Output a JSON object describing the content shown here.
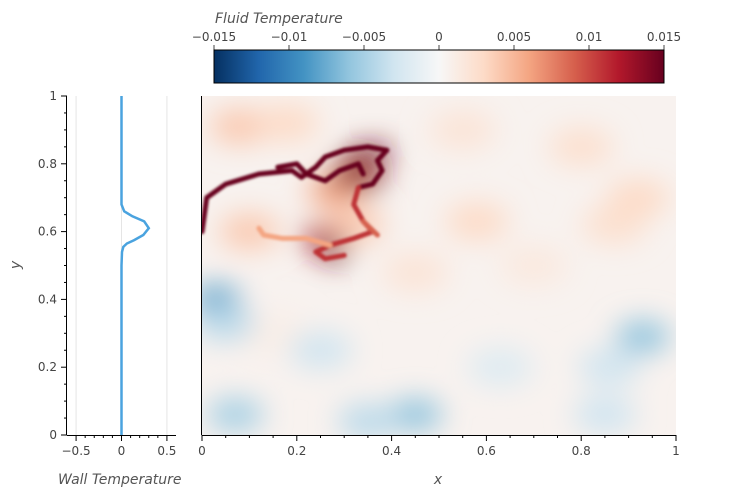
{
  "colorbar": {
    "title": "Fluid Temperature",
    "ticks": [
      -0.015,
      -0.01,
      -0.005,
      0,
      0.005,
      0.01,
      0.015
    ],
    "tick_labels": [
      "−0.015",
      "−0.01",
      "−0.005",
      "0",
      "0.005",
      "0.01",
      "0.015"
    ],
    "range": [
      -0.015,
      0.015
    ],
    "colormap": "RdBu_r",
    "stops": [
      "#053061",
      "#2166ac",
      "#4393c3",
      "#92c5de",
      "#d1e5f0",
      "#f7f7f7",
      "#fddbc7",
      "#f4a582",
      "#d6604d",
      "#b2182b",
      "#67001f"
    ]
  },
  "chart_data": [
    {
      "type": "line",
      "xlabel": "Wall Temperature",
      "ylabel": "y",
      "xlim": [
        -0.6,
        0.6
      ],
      "ylim": [
        0,
        1
      ],
      "xticks": [
        -0.5,
        0,
        0.5
      ],
      "xtick_labels": [
        "−0.5",
        "0",
        "0.5"
      ],
      "yticks": [
        0,
        0.2,
        0.4,
        0.6,
        0.8,
        1
      ],
      "ytick_labels": [
        "0",
        "0.2",
        "0.4",
        "0.6",
        "0.8",
        "1"
      ],
      "line_color": "#4aa3df",
      "x": [
        0,
        0,
        0,
        0,
        0,
        0,
        0.005,
        0.02,
        0.06,
        0.14,
        0.24,
        0.3,
        0.25,
        0.12,
        0.03,
        0,
        0,
        0,
        0,
        0
      ],
      "y": [
        0,
        0.1,
        0.2,
        0.3,
        0.4,
        0.5,
        0.54,
        0.555,
        0.565,
        0.575,
        0.59,
        0.61,
        0.63,
        0.645,
        0.66,
        0.68,
        0.75,
        0.85,
        0.95,
        1.0
      ]
    },
    {
      "type": "heatmap",
      "xlabel": "x",
      "ylabel": "",
      "xlim": [
        0,
        1
      ],
      "ylim": [
        0,
        1
      ],
      "xticks": [
        0,
        0.2,
        0.4,
        0.6,
        0.8,
        1
      ],
      "xtick_labels": [
        "0",
        "0.2",
        "0.4",
        "0.6",
        "0.8",
        "1"
      ],
      "value_range": [
        -0.015,
        0.015
      ],
      "background_value": 0.0005,
      "features": [
        {
          "x": 0.08,
          "y": 0.91,
          "value": 0.004
        },
        {
          "x": 0.18,
          "y": 0.92,
          "value": 0.003
        },
        {
          "x": 0.55,
          "y": 0.9,
          "value": 0.002
        },
        {
          "x": 0.8,
          "y": 0.85,
          "value": 0.0025
        },
        {
          "x": 0.92,
          "y": 0.7,
          "value": 0.003
        },
        {
          "x": 0.87,
          "y": 0.62,
          "value": 0.0025
        },
        {
          "x": 0.58,
          "y": 0.63,
          "value": 0.003
        },
        {
          "x": 0.1,
          "y": 0.6,
          "value": 0.004
        },
        {
          "x": 0.45,
          "y": 0.48,
          "value": 0.002
        },
        {
          "x": 0.7,
          "y": 0.5,
          "value": 0.0015
        },
        {
          "x": 0.15,
          "y": 0.3,
          "value": 0.001
        },
        {
          "x": 0.03,
          "y": 0.4,
          "value": -0.008
        },
        {
          "x": 0.05,
          "y": 0.33,
          "value": -0.004
        },
        {
          "x": 0.25,
          "y": 0.25,
          "value": -0.003
        },
        {
          "x": 0.93,
          "y": 0.29,
          "value": -0.006
        },
        {
          "x": 0.86,
          "y": 0.2,
          "value": -0.003
        },
        {
          "x": 0.63,
          "y": 0.2,
          "value": -0.002
        },
        {
          "x": 0.45,
          "y": 0.06,
          "value": -0.006
        },
        {
          "x": 0.07,
          "y": 0.06,
          "value": -0.005
        },
        {
          "x": 0.35,
          "y": 0.04,
          "value": -0.004
        },
        {
          "x": 0.85,
          "y": 0.06,
          "value": -0.003
        },
        {
          "x": 0.32,
          "y": 0.62,
          "value": 0.004
        },
        {
          "x": 0.25,
          "y": 0.58,
          "value": 0.012
        },
        {
          "x": 0.32,
          "y": 0.77,
          "value": 0.009
        },
        {
          "x": 0.28,
          "y": 0.72,
          "value": 0.006
        },
        {
          "x": 0.28,
          "y": 0.54,
          "value": 0.015
        },
        {
          "x": 0.33,
          "y": 0.82,
          "value": 0.015
        },
        {
          "x": 0.37,
          "y": 0.83,
          "value": 0.015
        },
        {
          "x": 0.3,
          "y": 0.76,
          "value": 0.015
        },
        {
          "x": 0.35,
          "y": 0.75,
          "value": 0.014
        }
      ],
      "plume_paths": [
        {
          "value": 0.015,
          "points": [
            [
              0.0,
              0.6
            ],
            [
              0.01,
              0.7
            ],
            [
              0.05,
              0.74
            ],
            [
              0.12,
              0.77
            ],
            [
              0.19,
              0.78
            ],
            [
              0.21,
              0.76
            ],
            [
              0.24,
              0.79
            ],
            [
              0.26,
              0.82
            ],
            [
              0.3,
              0.84
            ],
            [
              0.35,
              0.85
            ],
            [
              0.39,
              0.84
            ],
            [
              0.37,
              0.81
            ],
            [
              0.38,
              0.78
            ],
            [
              0.36,
              0.74
            ],
            [
              0.33,
              0.73
            ]
          ]
        },
        {
          "value": 0.015,
          "points": [
            [
              0.16,
              0.79
            ],
            [
              0.2,
              0.8
            ],
            [
              0.22,
              0.77
            ],
            [
              0.26,
              0.75
            ],
            [
              0.29,
              0.78
            ],
            [
              0.33,
              0.8
            ],
            [
              0.34,
              0.77
            ]
          ]
        },
        {
          "value": 0.011,
          "points": [
            [
              0.33,
              0.73
            ],
            [
              0.32,
              0.68
            ],
            [
              0.34,
              0.63
            ],
            [
              0.36,
              0.6
            ],
            [
              0.32,
              0.58
            ],
            [
              0.27,
              0.56
            ],
            [
              0.24,
              0.54
            ],
            [
              0.26,
              0.52
            ],
            [
              0.3,
              0.53
            ]
          ]
        },
        {
          "value": 0.009,
          "points": [
            [
              0.34,
              0.63
            ],
            [
              0.37,
              0.59
            ]
          ]
        },
        {
          "value": 0.006,
          "points": [
            [
              0.27,
              0.56
            ],
            [
              0.22,
              0.58
            ],
            [
              0.17,
              0.58
            ],
            [
              0.13,
              0.59
            ],
            [
              0.12,
              0.61
            ]
          ]
        }
      ]
    }
  ]
}
